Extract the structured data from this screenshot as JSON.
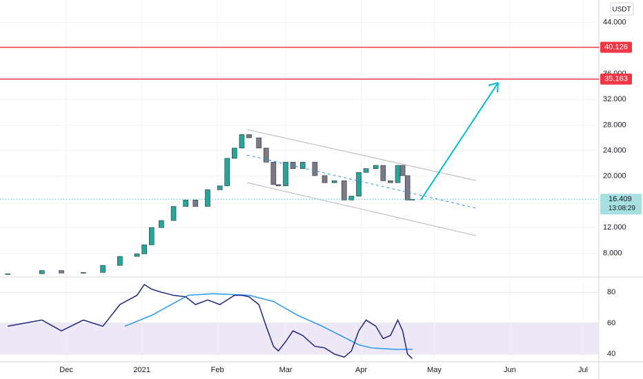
{
  "chart_data": [
    {
      "type": "candlestick",
      "currency": "USDT",
      "x": [
        -24,
        -10,
        -2,
        7,
        15,
        22,
        29,
        32,
        35,
        39,
        44,
        49,
        53,
        58,
        63,
        66,
        69,
        72,
        75,
        79,
        82,
        85,
        87,
        90,
        93,
        97,
        102,
        106,
        110,
        114,
        117,
        120,
        123,
        127,
        130,
        133,
        136,
        138,
        140,
        142
      ],
      "values": [
        4.8,
        5.3,
        4.9,
        5.0,
        6.1,
        7.5,
        7.9,
        9.3,
        12.0,
        13.1,
        15.3,
        16.3,
        15.3,
        17.9,
        18.5,
        22.8,
        24.4,
        26.5,
        26.0,
        24.4,
        22.2,
        18.7,
        18.5,
        22.2,
        21.2,
        22.2,
        20.1,
        19.0,
        19.3,
        16.3,
        16.9,
        20.6,
        21.2,
        21.7,
        19.3,
        19.0,
        21.7,
        20.1,
        16.3,
        16.4
      ],
      "up_color": "#26a69a",
      "down_color": "#787b86",
      "xlim": [
        -27.2,
        218.5
      ],
      "xticks": [
        {
          "value": 0,
          "label": "Dec"
        },
        {
          "value": 31,
          "label": "2021"
        },
        {
          "value": 62,
          "label": "Feb"
        },
        {
          "value": 90,
          "label": "Mar"
        },
        {
          "value": 121,
          "label": "Apr"
        },
        {
          "value": 151,
          "label": "May"
        },
        {
          "value": 182,
          "label": "Jun"
        },
        {
          "value": 212,
          "label": "Jul"
        }
      ],
      "ylim": [
        4.5,
        47.5
      ],
      "yticks": [
        {
          "value": 8,
          "label": "8.000"
        },
        {
          "value": 12,
          "label": "12.000"
        },
        {
          "value": 20,
          "label": "20.000"
        },
        {
          "value": 24,
          "label": "24.000"
        },
        {
          "value": 28,
          "label": "28.000"
        },
        {
          "value": 32,
          "label": "32.000"
        },
        {
          "value": 36,
          "label": "36.000"
        },
        {
          "value": 44,
          "label": "44.000"
        }
      ],
      "grid": true,
      "hlines": [
        40.126,
        35.163
      ],
      "hline_color": "#f23645",
      "last_price": 16.409,
      "countdown": "13:08:29",
      "last_color": "#a7e0e0"
    },
    {
      "type": "line",
      "x": [
        -24,
        -10,
        -2,
        7,
        15,
        22,
        29,
        32,
        35,
        39,
        44,
        49,
        53,
        58,
        63,
        66,
        69,
        72,
        75,
        79,
        82,
        85,
        87,
        90,
        93,
        97,
        102,
        106,
        110,
        114,
        117,
        120,
        123,
        127,
        130,
        133,
        136,
        138,
        140,
        142
      ],
      "values": [
        58,
        62,
        55,
        62,
        58,
        72,
        78,
        85,
        82,
        80,
        78,
        77,
        72,
        75,
        72,
        75,
        78,
        78,
        77,
        72,
        58,
        45,
        42,
        48,
        55,
        52,
        45,
        44,
        40,
        38,
        42,
        55,
        62,
        58,
        50,
        52,
        62,
        55,
        40,
        37
      ],
      "color": "#1a237e",
      "ma": {
        "x": [
          24,
          35,
          50,
          60,
          75,
          85,
          95,
          105,
          115,
          120,
          125,
          135,
          142
        ],
        "values": [
          58,
          65,
          78,
          79,
          78,
          74,
          65,
          58,
          50,
          46,
          44,
          43,
          43
        ],
        "color": "#2196f3"
      },
      "band": [
        40,
        60
      ],
      "band_color": "#ede7f6",
      "ylim": [
        35,
        88.5
      ],
      "yticks": [
        40,
        60,
        80
      ],
      "grid": true
    }
  ]
}
